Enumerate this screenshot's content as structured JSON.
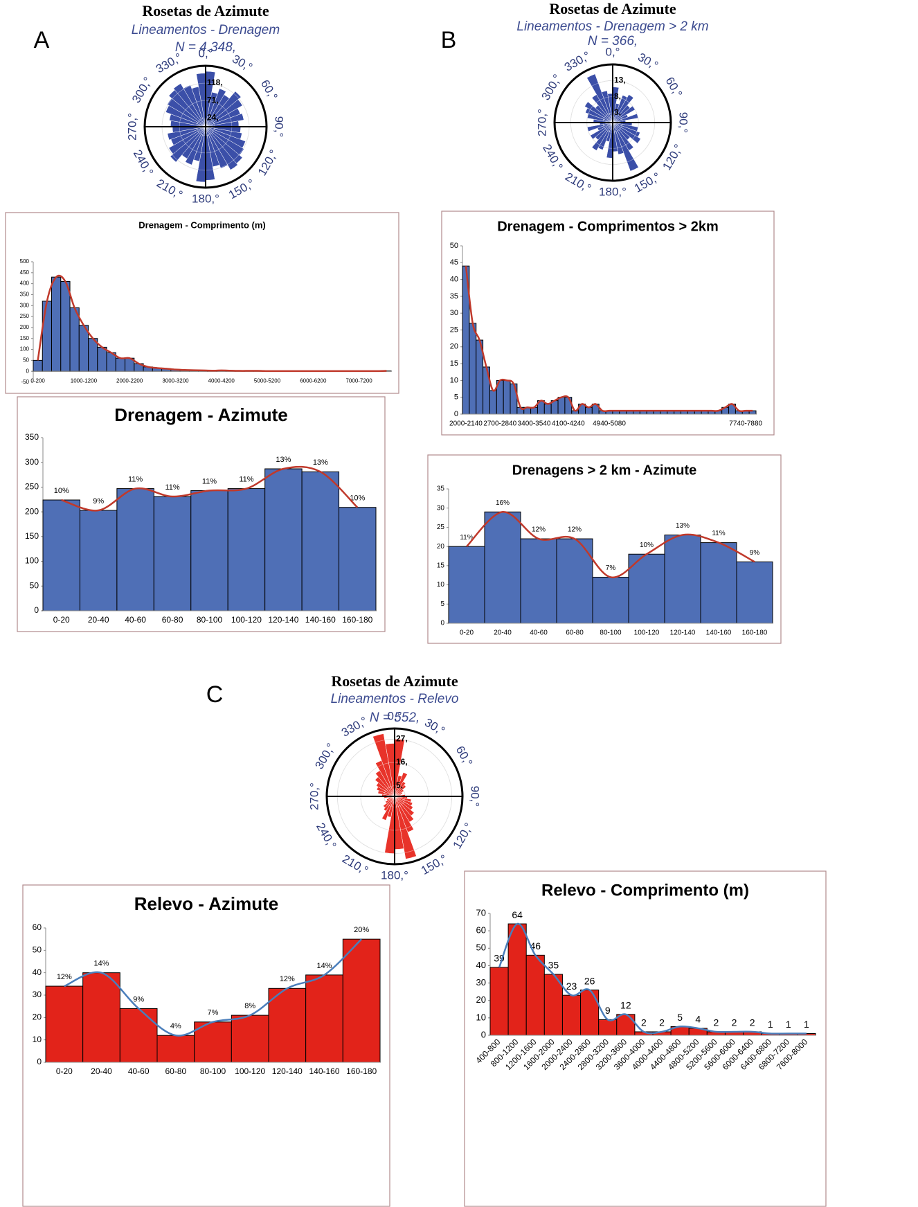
{
  "chart_data": [
    {
      "type": "rose",
      "label": "A",
      "title": "Rosetas de Azimute",
      "subtitle": "Lineamentos - Drenagem",
      "note": "N = 4.348,",
      "values": [
        150,
        95,
        110,
        100,
        125,
        115,
        100,
        105,
        90,
        95,
        100,
        115,
        120,
        130,
        135,
        120,
        110,
        145
      ],
      "color": "#3b4fa8",
      "rlim": [
        0,
        165
      ],
      "rticks": [
        {
          "value": 24,
          "label": "24,"
        },
        {
          "value": 71,
          "label": "71,"
        },
        {
          "value": 118,
          "label": "118,"
        }
      ],
      "angle_ticks": [
        {
          "value": 0,
          "label": "0,°"
        },
        {
          "value": 30,
          "label": "30,°"
        },
        {
          "value": 60,
          "label": "60,°"
        },
        {
          "value": 90,
          "label": "90,°"
        },
        {
          "value": 120,
          "label": "120,°"
        },
        {
          "value": 150,
          "label": "150,°"
        },
        {
          "value": 180,
          "label": "180,°"
        },
        {
          "value": 210,
          "label": "210,°"
        },
        {
          "value": 240,
          "label": "240,°"
        },
        {
          "value": 270,
          "label": "270,°"
        },
        {
          "value": 300,
          "label": "300,°"
        },
        {
          "value": 330,
          "label": "330,°"
        }
      ]
    },
    {
      "type": "bar",
      "title": "Drenagem - Comprimento (m)",
      "categories": [
        "0-200",
        null,
        null,
        null,
        null,
        "1000-1200",
        null,
        null,
        null,
        null,
        "2000-2200",
        null,
        null,
        null,
        null,
        "3000-3200",
        null,
        null,
        null,
        null,
        "4000-4200",
        null,
        null,
        null,
        null,
        "5000-5200",
        null,
        null,
        null,
        null,
        "6000-6200",
        null,
        null,
        null,
        null,
        "7000-7200",
        null,
        null,
        null
      ],
      "values": [
        50,
        320,
        430,
        410,
        290,
        210,
        150,
        110,
        85,
        60,
        60,
        35,
        20,
        15,
        12,
        8,
        6,
        5,
        4,
        3,
        4,
        3,
        2,
        2,
        2,
        1,
        1,
        1,
        1,
        1,
        1,
        1,
        1,
        1,
        1,
        1,
        1,
        1,
        2
      ],
      "color": "#4f6fb6",
      "edge_color": "#000000",
      "trend_color": "#c0392b",
      "ylim": [
        -50,
        500
      ],
      "yticks": [
        -50,
        0,
        50,
        100,
        150,
        200,
        250,
        300,
        350,
        400,
        450,
        500
      ]
    },
    {
      "type": "bar",
      "title": "Drenagem - Azimute",
      "categories": [
        "0-20",
        "20-40",
        "40-60",
        "60-80",
        "80-100",
        "100-120",
        "120-140",
        "140-160",
        "160-180"
      ],
      "values": [
        224,
        203,
        247,
        231,
        243,
        247,
        287,
        281,
        209
      ],
      "bar_labels": [
        "10%",
        "9%",
        "11%",
        "11%",
        "11%",
        "11%",
        "13%",
        "13%",
        "10%"
      ],
      "color": "#4f6fb6",
      "edge_color": "#000000",
      "trend_color": "#c0392b",
      "ylim": [
        0,
        350
      ],
      "yticks": [
        0,
        50,
        100,
        150,
        200,
        250,
        300,
        350
      ]
    },
    {
      "type": "rose",
      "label": "B",
      "title": "Rosetas de Azimute",
      "subtitle": "Lineamentos - Drenagem > 2 km",
      "note": "N = 366,",
      "values": [
        11,
        6,
        9,
        10,
        7,
        8,
        5,
        8,
        4,
        6,
        8,
        9,
        10,
        7,
        10,
        16,
        10,
        9
      ],
      "color": "#3b4fa8",
      "rlim": [
        0,
        18
      ],
      "rticks": [
        {
          "value": 3,
          "label": "3,"
        },
        {
          "value": 8,
          "label": "8,"
        },
        {
          "value": 13,
          "label": "13,"
        }
      ],
      "angle_ticks": [
        {
          "value": 0,
          "label": "0,°"
        },
        {
          "value": 30,
          "label": "30,°"
        },
        {
          "value": 60,
          "label": "60,°"
        },
        {
          "value": 90,
          "label": "90,°"
        },
        {
          "value": 120,
          "label": "120,°"
        },
        {
          "value": 150,
          "label": "150,°"
        },
        {
          "value": 180,
          "label": "180,°"
        },
        {
          "value": 210,
          "label": "210,°"
        },
        {
          "value": 240,
          "label": "240,°"
        },
        {
          "value": 270,
          "label": "270,°"
        },
        {
          "value": 300,
          "label": "300,°"
        },
        {
          "value": 330,
          "label": "330,°"
        }
      ]
    },
    {
      "type": "bar",
      "title": "Drenagem - Comprimentos > 2km",
      "categories": [
        "2000-2140",
        null,
        null,
        null,
        null,
        "2700-2840",
        null,
        null,
        null,
        null,
        "3400-3540",
        null,
        null,
        null,
        null,
        "4100-4240",
        null,
        null,
        null,
        null,
        null,
        "4940-5080",
        null,
        null,
        null,
        null,
        null,
        null,
        null,
        null,
        null,
        null,
        null,
        null,
        null,
        null,
        null,
        null,
        null,
        null,
        null,
        "7740-7880",
        null
      ],
      "values": [
        44,
        27,
        22,
        14,
        7,
        10,
        10,
        9,
        2,
        2,
        2,
        4,
        3,
        4,
        5,
        5,
        1,
        3,
        2,
        3,
        1,
        1,
        1,
        1,
        1,
        1,
        1,
        1,
        1,
        1,
        1,
        1,
        1,
        1,
        1,
        1,
        1,
        1,
        2,
        3,
        1,
        1,
        1
      ],
      "color": "#4f6fb6",
      "edge_color": "#000000",
      "trend_color": "#c0392b",
      "ylim": [
        0,
        50
      ],
      "yticks": [
        0,
        5,
        10,
        15,
        20,
        25,
        30,
        35,
        40,
        45,
        50
      ]
    },
    {
      "type": "bar",
      "title": "Drenagens > 2 km - Azimute",
      "categories": [
        "0-20",
        "20-40",
        "40-60",
        "60-80",
        "80-100",
        "100-120",
        "120-140",
        "140-160",
        "160-180"
      ],
      "values": [
        20,
        29,
        22,
        22,
        12,
        18,
        23,
        21,
        16
      ],
      "bar_labels": [
        "11%",
        "16%",
        "12%",
        "12%",
        "7%",
        "10%",
        "13%",
        "11%",
        "9%"
      ],
      "color": "#4f6fb6",
      "edge_color": "#000000",
      "trend_color": "#c0392b",
      "ylim": [
        0,
        35
      ],
      "yticks": [
        0,
        5,
        10,
        15,
        20,
        25,
        30,
        35
      ]
    },
    {
      "type": "rose",
      "label": "C",
      "title": "Rosetas de Azimute",
      "subtitle": "Lineamentos - Relevo",
      "note": "N = 552,",
      "values": [
        27,
        10,
        12,
        8,
        7,
        5,
        4,
        3,
        5,
        6,
        8,
        9,
        10,
        12,
        14,
        18,
        30,
        25
      ],
      "color": "#e8332a",
      "rlim": [
        0,
        32
      ],
      "rticks": [
        {
          "value": 5,
          "label": "5,"
        },
        {
          "value": 16,
          "label": "16,"
        },
        {
          "value": 27,
          "label": "27,"
        }
      ],
      "angle_ticks": [
        {
          "value": 0,
          "label": "0,°"
        },
        {
          "value": 30,
          "label": "30,°"
        },
        {
          "value": 60,
          "label": "60,°"
        },
        {
          "value": 90,
          "label": "90,°"
        },
        {
          "value": 120,
          "label": "120,°"
        },
        {
          "value": 150,
          "label": "150,°"
        },
        {
          "value": 180,
          "label": "180,°"
        },
        {
          "value": 210,
          "label": "210,°"
        },
        {
          "value": 240,
          "label": "240,°"
        },
        {
          "value": 270,
          "label": "270,°"
        },
        {
          "value": 300,
          "label": "300,°"
        },
        {
          "value": 330,
          "label": "330,°"
        }
      ]
    },
    {
      "type": "bar",
      "title": "Relevo - Azimute",
      "categories": [
        "0-20",
        "20-40",
        "40-60",
        "60-80",
        "80-100",
        "100-120",
        "120-140",
        "140-160",
        "160-180"
      ],
      "values": [
        34,
        40,
        24,
        12,
        18,
        21,
        33,
        39,
        55
      ],
      "bar_labels": [
        "12%",
        "14%",
        "9%",
        "4%",
        "7%",
        "8%",
        "12%",
        "14%",
        "20%"
      ],
      "color": "#e2231a",
      "edge_color": "#000000",
      "trend_color": "#4a7ebb",
      "ylim": [
        0,
        60
      ],
      "yticks": [
        0,
        10,
        20,
        30,
        40,
        50,
        60
      ]
    },
    {
      "type": "bar",
      "title": "Relevo - Comprimento (m)",
      "categories": [
        "400-800",
        "800-1200",
        "1200-1600",
        "1600-2000",
        "2000-2400",
        "2400-2800",
        "2800-3200",
        "3200-3600",
        "3600-4000",
        "4000-4400",
        "4400-4800",
        "4800-5200",
        "5200-5600",
        "5600-6000",
        "6000-6400",
        "6400-6800",
        "6800-7200",
        "7600-8000"
      ],
      "values": [
        39,
        64,
        46,
        35,
        23,
        26,
        9,
        12,
        2,
        2,
        5,
        4,
        2,
        2,
        2,
        1,
        1,
        1
      ],
      "show_values": true,
      "color": "#e2231a",
      "edge_color": "#000000",
      "trend_color": "#4a7ebb",
      "ylim": [
        0,
        70
      ],
      "yticks": [
        0,
        10,
        20,
        30,
        40,
        50,
        60,
        70
      ]
    }
  ]
}
